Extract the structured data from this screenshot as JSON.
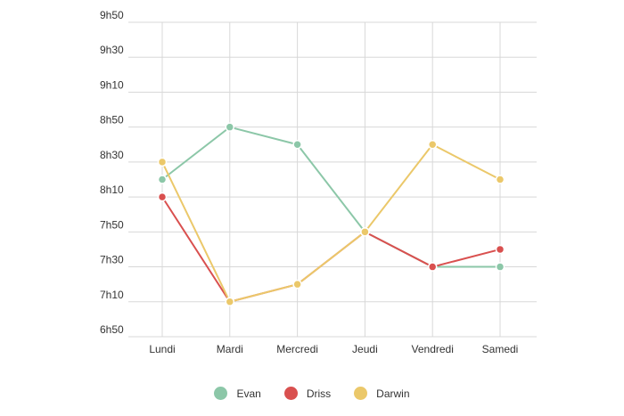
{
  "chart_data": {
    "type": "line",
    "categories": [
      "Lundi",
      "Mardi",
      "Mercredi",
      "Jeudi",
      "Vendredi",
      "Samedi"
    ],
    "y_ticks": [
      "9h50",
      "9h30",
      "9h10",
      "8h50",
      "8h30",
      "8h10",
      "7h50",
      "7h30",
      "7h10",
      "6h50"
    ],
    "y_unit": "minutes since midnight",
    "ylim": [
      410,
      590
    ],
    "grid": true,
    "legend_position": "bottom",
    "series": [
      {
        "name": "Evan",
        "color": "#8cc7a8",
        "values": [
          500,
          530,
          520,
          470,
          450,
          450
        ]
      },
      {
        "name": "Driss",
        "color": "#d9504f",
        "values": [
          490,
          430,
          440,
          470,
          450,
          460
        ]
      },
      {
        "name": "Darwin",
        "color": "#ebc86a",
        "values": [
          510,
          430,
          440,
          470,
          520,
          500
        ]
      }
    ]
  }
}
